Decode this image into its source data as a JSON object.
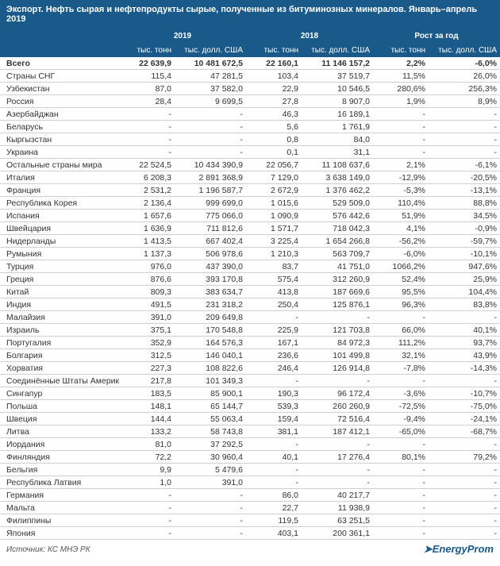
{
  "title": "Экспорт. Нефть сырая и нефтепродукты сырые, полученные из битуминозных минералов. Январь–апрель 2019",
  "source": "Источник: КС МНЭ РК",
  "logo": "EnergyProm",
  "colors": {
    "header_bg": "#1a5a8a",
    "header_text": "#ffffff",
    "row_border": "#d0d0d0",
    "text": "#333333"
  },
  "header": {
    "year1": "2019",
    "year2": "2018",
    "growth": "Рост за год",
    "sub_tons": "тыс. тонн",
    "sub_usd": "тыс. долл. США"
  },
  "rows": [
    {
      "label": "Всего",
      "bold": true,
      "v": [
        "22 639,9",
        "10 481 672,5",
        "22 160,1",
        "11 146 157,2",
        "2,2%",
        "-6,0%"
      ]
    },
    {
      "label": "Страны СНГ",
      "v": [
        "115,4",
        "47 281,5",
        "103,4",
        "37 519,7",
        "11,5%",
        "26,0%"
      ]
    },
    {
      "label": "Узбекистан",
      "v": [
        "87,0",
        "37 582,0",
        "22,9",
        "10 546,5",
        "280,6%",
        "256,3%"
      ]
    },
    {
      "label": "Россия",
      "v": [
        "28,4",
        "9 699,5",
        "27,8",
        "8 907,0",
        "1,9%",
        "8,9%"
      ]
    },
    {
      "label": "Азербайджан",
      "v": [
        "-",
        "-",
        "46,3",
        "16 189,1",
        "-",
        "-"
      ]
    },
    {
      "label": "Беларусь",
      "v": [
        "-",
        "-",
        "5,6",
        "1 761,9",
        "-",
        "-"
      ]
    },
    {
      "label": "Кыргызстан",
      "v": [
        "-",
        "-",
        "0,8",
        "84,0",
        "-",
        "-"
      ]
    },
    {
      "label": "Украина",
      "v": [
        "-",
        "-",
        "0,1",
        "31,1",
        "-",
        "-"
      ]
    },
    {
      "label": "Остальные страны мира",
      "v": [
        "22 524,5",
        "10 434 390,9",
        "22 056,7",
        "11 108 637,6",
        "2,1%",
        "-6,1%"
      ]
    },
    {
      "label": "Италия",
      "v": [
        "6 208,3",
        "2 891 368,9",
        "7 129,0",
        "3 638 149,0",
        "-12,9%",
        "-20,5%"
      ]
    },
    {
      "label": "Франция",
      "v": [
        "2 531,2",
        "1 196 587,7",
        "2 672,9",
        "1 376 462,2",
        "-5,3%",
        "-13,1%"
      ]
    },
    {
      "label": "Республика Корея",
      "v": [
        "2 136,4",
        "999 699,0",
        "1 015,6",
        "529 509,0",
        "110,4%",
        "88,8%"
      ]
    },
    {
      "label": "Испания",
      "v": [
        "1 657,6",
        "775 066,0",
        "1 090,9",
        "576 442,6",
        "51,9%",
        "34,5%"
      ]
    },
    {
      "label": "Швейцария",
      "v": [
        "1 636,9",
        "711 812,6",
        "1 571,7",
        "718 042,3",
        "4,1%",
        "-0,9%"
      ]
    },
    {
      "label": "Нидерланды",
      "v": [
        "1 413,5",
        "667 402,4",
        "3 225,4",
        "1 654 266,8",
        "-56,2%",
        "-59,7%"
      ]
    },
    {
      "label": "Румыния",
      "v": [
        "1 137,3",
        "506 978,6",
        "1 210,3",
        "563 709,7",
        "-6,0%",
        "-10,1%"
      ]
    },
    {
      "label": "Турция",
      "v": [
        "976,0",
        "437 390,0",
        "83,7",
        "41 751,0",
        "1066,2%",
        "947,6%"
      ]
    },
    {
      "label": "Греция",
      "v": [
        "876,6",
        "393 170,8",
        "575,4",
        "312 260,9",
        "52,4%",
        "25,9%"
      ]
    },
    {
      "label": "Китай",
      "v": [
        "809,3",
        "383 634,7",
        "413,8",
        "187 669,6",
        "95,5%",
        "104,4%"
      ]
    },
    {
      "label": "Индия",
      "v": [
        "491,5",
        "231 318,2",
        "250,4",
        "125 876,1",
        "96,3%",
        "83,8%"
      ]
    },
    {
      "label": "Малайзия",
      "v": [
        "391,0",
        "209 649,8",
        "-",
        "-",
        "-",
        "-"
      ]
    },
    {
      "label": "Израиль",
      "v": [
        "375,1",
        "170 548,8",
        "225,9",
        "121 703,8",
        "66,0%",
        "40,1%"
      ]
    },
    {
      "label": "Португалия",
      "v": [
        "352,9",
        "164 576,3",
        "167,1",
        "84 972,3",
        "111,2%",
        "93,7%"
      ]
    },
    {
      "label": "Болгария",
      "v": [
        "312,5",
        "146 040,1",
        "236,6",
        "101 499,8",
        "32,1%",
        "43,9%"
      ]
    },
    {
      "label": "Хорватия",
      "v": [
        "227,3",
        "108 822,6",
        "246,4",
        "126 914,8",
        "-7,8%",
        "-14,3%"
      ]
    },
    {
      "label": "Соединённые Штаты Америки",
      "v": [
        "217,8",
        "101 349,3",
        "-",
        "-",
        "-",
        "-"
      ]
    },
    {
      "label": "Сингапур",
      "v": [
        "183,5",
        "85 900,1",
        "190,3",
        "96 172,4",
        "-3,6%",
        "-10,7%"
      ]
    },
    {
      "label": "Польша",
      "v": [
        "148,1",
        "65 144,7",
        "539,3",
        "260 260,9",
        "-72,5%",
        "-75,0%"
      ]
    },
    {
      "label": "Швеция",
      "v": [
        "144,4",
        "55 063,4",
        "159,4",
        "72 516,4",
        "-9,4%",
        "-24,1%"
      ]
    },
    {
      "label": "Литва",
      "v": [
        "133,2",
        "58 743,8",
        "381,1",
        "187 412,1",
        "-65,0%",
        "-68,7%"
      ]
    },
    {
      "label": "Иордания",
      "v": [
        "81,0",
        "37 292,5",
        "-",
        "-",
        "-",
        "-"
      ]
    },
    {
      "label": "Финляндия",
      "v": [
        "72,2",
        "30 960,4",
        "40,1",
        "17 276,4",
        "80,1%",
        "79,2%"
      ]
    },
    {
      "label": "Бельгия",
      "v": [
        "9,9",
        "5 479,6",
        "-",
        "-",
        "-",
        "-"
      ]
    },
    {
      "label": "Республика Латвия",
      "v": [
        "1,0",
        "391,0",
        "-",
        "-",
        "-",
        "-"
      ]
    },
    {
      "label": "Германия",
      "v": [
        "-",
        "-",
        "86,0",
        "40 217,7",
        "-",
        "-"
      ]
    },
    {
      "label": "Мальта",
      "v": [
        "-",
        "-",
        "22,7",
        "11 938,9",
        "-",
        "-"
      ]
    },
    {
      "label": "Филиппины",
      "v": [
        "-",
        "-",
        "119,5",
        "63 251,5",
        "-",
        "-"
      ]
    },
    {
      "label": "Япония",
      "v": [
        "-",
        "-",
        "403,1",
        "200 361,1",
        "-",
        "-"
      ]
    }
  ]
}
